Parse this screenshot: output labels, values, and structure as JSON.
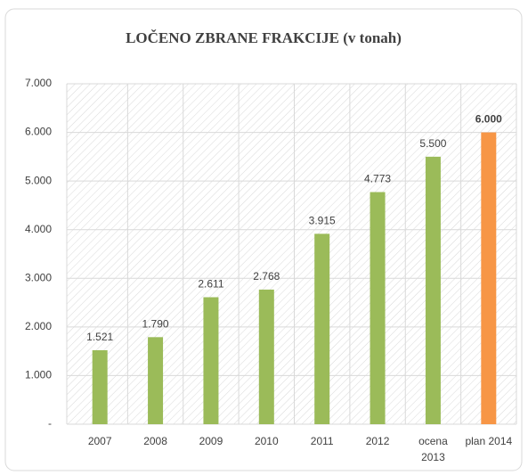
{
  "chart_data": {
    "type": "bar",
    "title": "LOČENO ZBRANE FRAKCIJE (v tonah)",
    "categories": [
      "2007",
      "2008",
      "2009",
      "2010",
      "2011",
      "2012",
      "ocena 2013",
      "plan 2014"
    ],
    "values": [
      1521,
      1790,
      2611,
      2768,
      3915,
      4773,
      5500,
      6000
    ],
    "value_labels": [
      "1.521",
      "1.790",
      "2.611",
      "2.768",
      "3.915",
      "4.773",
      "5.500",
      "6.000"
    ],
    "bold_value_labels": [
      false,
      false,
      false,
      false,
      false,
      false,
      false,
      true
    ],
    "colors": [
      "#9bbb59",
      "#9bbb59",
      "#9bbb59",
      "#9bbb59",
      "#9bbb59",
      "#9bbb59",
      "#9bbb59",
      "#f79646"
    ],
    "ylim": [
      0,
      7000
    ],
    "yticks": [
      {
        "value": 0,
        "label": "-"
      },
      {
        "value": 1000,
        "label": "1.000"
      },
      {
        "value": 2000,
        "label": "2.000"
      },
      {
        "value": 3000,
        "label": "3.000"
      },
      {
        "value": 4000,
        "label": "4.000"
      },
      {
        "value": 5000,
        "label": "5.000"
      },
      {
        "value": 6000,
        "label": "6.000"
      },
      {
        "value": 7000,
        "label": "7.000"
      }
    ],
    "grid": true
  }
}
